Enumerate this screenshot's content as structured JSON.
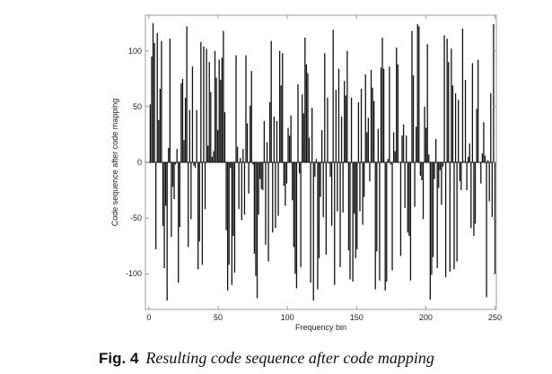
{
  "chart_data": {
    "type": "bar",
    "style": "stem",
    "xlabel": "Frequency bin",
    "ylabel": "Code sequence after code mapping",
    "xlim": [
      -2.5,
      251
    ],
    "ylim": [
      -132,
      132
    ],
    "xticks": [
      0,
      50,
      100,
      150,
      200,
      250
    ],
    "yticks": [
      -100,
      -50,
      0,
      50,
      100
    ],
    "grid": false,
    "bar_color": "#111111",
    "values": [
      52,
      95,
      125,
      107,
      -78,
      116,
      38,
      66,
      109,
      -57,
      -95,
      -39,
      -124,
      13,
      111,
      -67,
      -22,
      -33,
      -2,
      12,
      -108,
      -58,
      71,
      75,
      20,
      58,
      122,
      -76,
      47,
      -51,
      86,
      -3,
      -5,
      47,
      -96,
      -71,
      108,
      -92,
      104,
      -42,
      102,
      15,
      90,
      63,
      5,
      10,
      100,
      76,
      29,
      92,
      74,
      94,
      118,
      45,
      -61,
      -115,
      -92,
      -5,
      -110,
      -66,
      -99,
      96,
      14,
      -42,
      4,
      -52,
      12,
      -47,
      96,
      35,
      -28,
      51,
      82,
      -2,
      -82,
      -102,
      -122,
      -47,
      -15,
      -24,
      -25,
      37,
      -74,
      18,
      -89,
      54,
      109,
      -63,
      41,
      -59,
      37,
      -48,
      100,
      69,
      98,
      -21,
      -39,
      -19,
      31,
      24,
      42,
      -34,
      -76,
      -100,
      -113,
      70,
      -10,
      -94,
      61,
      44,
      112,
      88,
      80,
      22,
      -108,
      49,
      -124,
      -13,
      3,
      -114,
      -86,
      -31,
      29,
      -49,
      98,
      -83,
      58,
      -1,
      -13,
      -57,
      119,
      -110,
      65,
      -44,
      84,
      -94,
      41,
      -45,
      73,
      60,
      100,
      -79,
      -105,
      58,
      -107,
      -46,
      -86,
      -78,
      54,
      -44,
      66,
      -56,
      -31,
      79,
      27,
      40,
      -17,
      83,
      67,
      55,
      -114,
      -80,
      30,
      -106,
      85,
      112,
      84,
      -115,
      -107,
      3,
      86,
      -2,
      -97,
      27,
      10,
      103,
      88,
      0,
      -84,
      24,
      34,
      -41,
      24,
      -63,
      -66,
      -106,
      118,
      78,
      -40,
      32,
      124,
      122,
      -12,
      -16,
      -51,
      50,
      31,
      106,
      7,
      -123,
      -101,
      -85,
      -15,
      21,
      -95,
      -23,
      -7,
      -38,
      -4,
      114,
      -103,
      111,
      90,
      -98,
      102,
      69,
      -96,
      62,
      -89,
      56,
      -17,
      -25,
      120,
      1,
      74,
      -25,
      5,
      17,
      -59,
      89,
      -66,
      -55,
      48,
      92,
      0,
      -19,
      8,
      36,
      6,
      -121,
      2,
      -35,
      62,
      -49,
      124,
      -100
    ]
  },
  "caption": {
    "label": "Fig. 4",
    "text": "Resulting code sequence after code mapping"
  }
}
